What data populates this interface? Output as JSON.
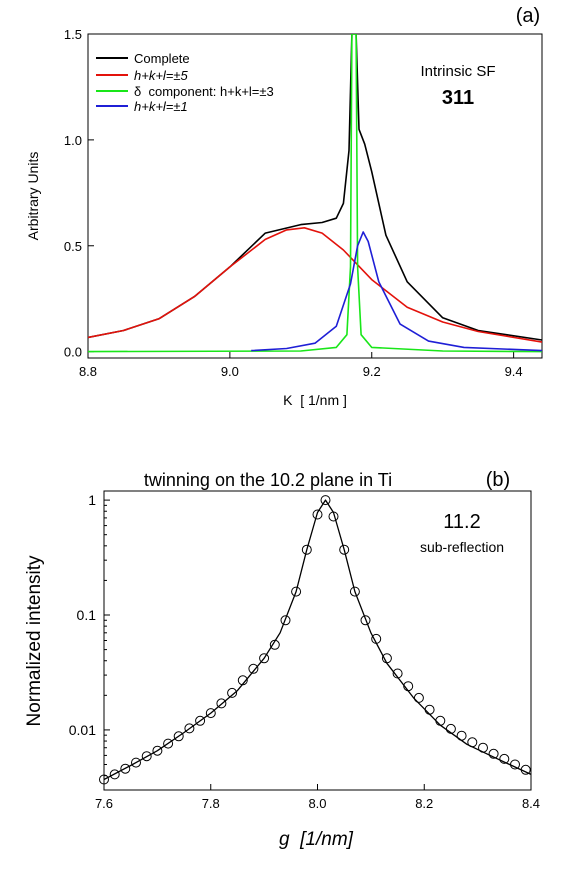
{
  "panels": {
    "a": {
      "label": "(a)",
      "annotation_line1": "Intrinsic SF",
      "annotation_line2": "311",
      "legend": [
        {
          "key": "complete",
          "text": "Complete"
        },
        {
          "key": "red",
          "text": "h+k+l=±5"
        },
        {
          "key": "green",
          "text": "δ  component: h+k+l=±3"
        },
        {
          "key": "blue",
          "text": "h+k+l=±1"
        }
      ]
    },
    "b": {
      "label": "(b)",
      "title": "twinning on the 10.2 plane in Ti",
      "annotation_line1": "11.2",
      "annotation_line2": "sub-reflection"
    }
  },
  "chart_data": [
    {
      "type": "line",
      "xlabel": "K  [ 1/nm ]",
      "ylabel": "Arbitrary Units",
      "xlim": [
        8.8,
        9.44
      ],
      "ylim": [
        -0.03,
        1.5
      ],
      "xticks": [
        "8.8",
        "9.0",
        "9.2",
        "9.4"
      ],
      "yticks": [
        "0.0",
        "0.5",
        "1.0",
        "1.5"
      ],
      "grid": false,
      "legend_position": "top-left",
      "series": [
        {
          "name": "Complete",
          "color": "#000000",
          "x": [
            8.8,
            8.85,
            8.9,
            8.95,
            9.0,
            9.05,
            9.1,
            9.13,
            9.15,
            9.16,
            9.168,
            9.172,
            9.175,
            9.178,
            9.182,
            9.19,
            9.2,
            9.22,
            9.25,
            9.3,
            9.35,
            9.44
          ],
          "y": [
            0.067,
            0.1,
            0.155,
            0.26,
            0.4,
            0.56,
            0.6,
            0.61,
            0.63,
            0.7,
            0.95,
            1.5,
            1.5,
            1.5,
            1.05,
            0.98,
            0.85,
            0.55,
            0.33,
            0.16,
            0.1,
            0.055
          ]
        },
        {
          "name": "h+k+l=±5",
          "color": "#e3120b",
          "x": [
            8.8,
            8.85,
            8.9,
            8.95,
            9.0,
            9.05,
            9.08,
            9.105,
            9.13,
            9.16,
            9.2,
            9.25,
            9.3,
            9.35,
            9.44
          ],
          "y": [
            0.067,
            0.1,
            0.155,
            0.26,
            0.4,
            0.53,
            0.575,
            0.585,
            0.56,
            0.48,
            0.34,
            0.21,
            0.14,
            0.095,
            0.045
          ]
        },
        {
          "name": "δ  component: h+k+l=±3",
          "color": "#19e619",
          "x": [
            8.8,
            9.1,
            9.15,
            9.165,
            9.17,
            9.172,
            9.175,
            9.178,
            9.18,
            9.185,
            9.2,
            9.3,
            9.44
          ],
          "y": [
            0.0,
            0.003,
            0.02,
            0.08,
            0.4,
            1.5,
            1.5,
            1.5,
            0.4,
            0.08,
            0.02,
            0.003,
            0.0
          ]
        },
        {
          "name": "h+k+l=±1",
          "color": "#1f1fd6",
          "x": [
            9.03,
            9.08,
            9.12,
            9.15,
            9.17,
            9.18,
            9.188,
            9.195,
            9.21,
            9.24,
            9.28,
            9.33,
            9.44
          ],
          "y": [
            0.005,
            0.015,
            0.04,
            0.12,
            0.32,
            0.5,
            0.565,
            0.52,
            0.33,
            0.13,
            0.05,
            0.02,
            0.005
          ]
        }
      ]
    },
    {
      "type": "scatter",
      "title": "twinning on the 10.2 plane in Ti",
      "xlabel": "g  [1/nm]",
      "ylabel": "Normalized intensity",
      "xlim": [
        7.6,
        8.4
      ],
      "ylim": [
        0.003,
        1.2
      ],
      "yscale": "log",
      "xticks": [
        "7.6",
        "7.8",
        "8.0",
        "8.2",
        "8.4"
      ],
      "yticks": [
        "0.01",
        "0.1",
        "1"
      ],
      "grid": false,
      "series": [
        {
          "name": "fit",
          "style": "line",
          "color": "#000000",
          "x": [
            7.6,
            7.65,
            7.7,
            7.75,
            7.8,
            7.85,
            7.9,
            7.93,
            7.96,
            7.98,
            8.0,
            8.015,
            8.03,
            8.05,
            8.07,
            8.1,
            8.13,
            8.18,
            8.23,
            8.28,
            8.33,
            8.4
          ],
          "y": [
            0.0037,
            0.0049,
            0.0066,
            0.0095,
            0.014,
            0.022,
            0.042,
            0.07,
            0.16,
            0.37,
            0.78,
            1.0,
            0.78,
            0.37,
            0.16,
            0.07,
            0.038,
            0.019,
            0.011,
            0.0075,
            0.0058,
            0.0041
          ]
        },
        {
          "name": "data",
          "style": "open-circle",
          "color": "#000000",
          "x": [
            7.6,
            7.62,
            7.64,
            7.66,
            7.68,
            7.7,
            7.72,
            7.74,
            7.76,
            7.78,
            7.8,
            7.82,
            7.84,
            7.86,
            7.88,
            7.9,
            7.92,
            7.94,
            7.96,
            7.98,
            8.0,
            8.015,
            8.03,
            8.05,
            8.07,
            8.09,
            8.11,
            8.13,
            8.15,
            8.17,
            8.19,
            8.21,
            8.23,
            8.25,
            8.27,
            8.29,
            8.31,
            8.33,
            8.35,
            8.37,
            8.39
          ],
          "y": [
            0.0037,
            0.0041,
            0.0046,
            0.0052,
            0.0059,
            0.0066,
            0.0076,
            0.0088,
            0.0103,
            0.012,
            0.014,
            0.017,
            0.021,
            0.027,
            0.034,
            0.042,
            0.055,
            0.09,
            0.16,
            0.37,
            0.75,
            1.0,
            0.72,
            0.37,
            0.16,
            0.09,
            0.062,
            0.042,
            0.031,
            0.024,
            0.019,
            0.015,
            0.012,
            0.0102,
            0.0089,
            0.0078,
            0.007,
            0.0062,
            0.0056,
            0.005,
            0.0045
          ]
        }
      ]
    }
  ]
}
